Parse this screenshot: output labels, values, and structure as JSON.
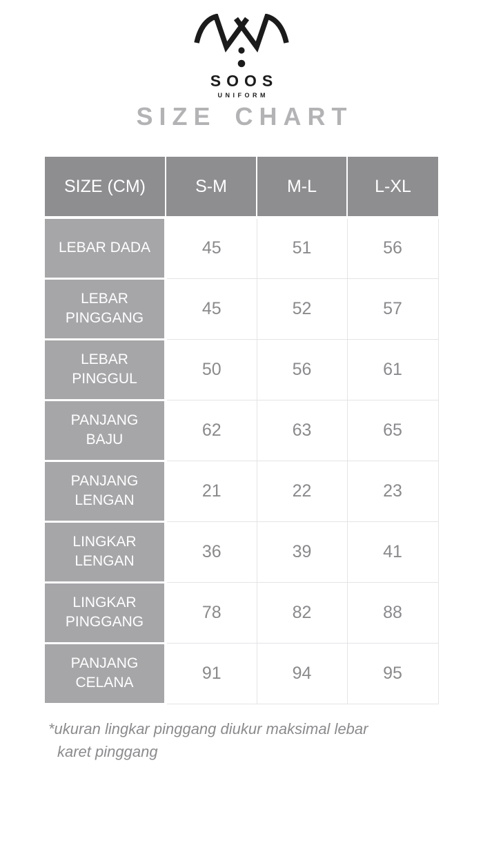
{
  "logo": {
    "icon": "collar-icon",
    "brand": "SOOS",
    "sub_brand": "UNIFORM",
    "color": "#1b1b1b"
  },
  "title": "SIZE CHART",
  "table": {
    "header": [
      "SIZE (CM)",
      "S-M",
      "M-L",
      "L-XL"
    ],
    "rows": [
      {
        "label": "LEBAR DADA",
        "values": [
          "45",
          "51",
          "56"
        ]
      },
      {
        "label": "LEBAR\nPINGGANG",
        "values": [
          "45",
          "52",
          "57"
        ]
      },
      {
        "label": "LEBAR\nPINGGUL",
        "values": [
          "50",
          "56",
          "61"
        ]
      },
      {
        "label": "PANJANG\nBAJU",
        "values": [
          "62",
          "63",
          "65"
        ]
      },
      {
        "label": "PANJANG\nLENGAN",
        "values": [
          "21",
          "22",
          "23"
        ]
      },
      {
        "label": "LINGKAR\nLENGAN",
        "values": [
          "36",
          "39",
          "41"
        ]
      },
      {
        "label": "LINGKAR\nPINGGANG",
        "values": [
          "78",
          "82",
          "88"
        ]
      },
      {
        "label": "PANJANG\nCELANA",
        "values": [
          "91",
          "94",
          "95"
        ]
      }
    ]
  },
  "footnote": {
    "line1": "*ukuran lingkar pinggang diukur maksimal lebar",
    "line2": "karet pinggang"
  },
  "colors": {
    "header_bg": "#8e8e91",
    "label_bg": "#a6a6a9",
    "header_text": "#ffffff",
    "data_text": "#8a8a8d",
    "cell_border": "#e4e4e6",
    "title_text": "#b3b3b5",
    "footnote_text": "#8b8b8e",
    "logo": "#1b1b1b"
  }
}
